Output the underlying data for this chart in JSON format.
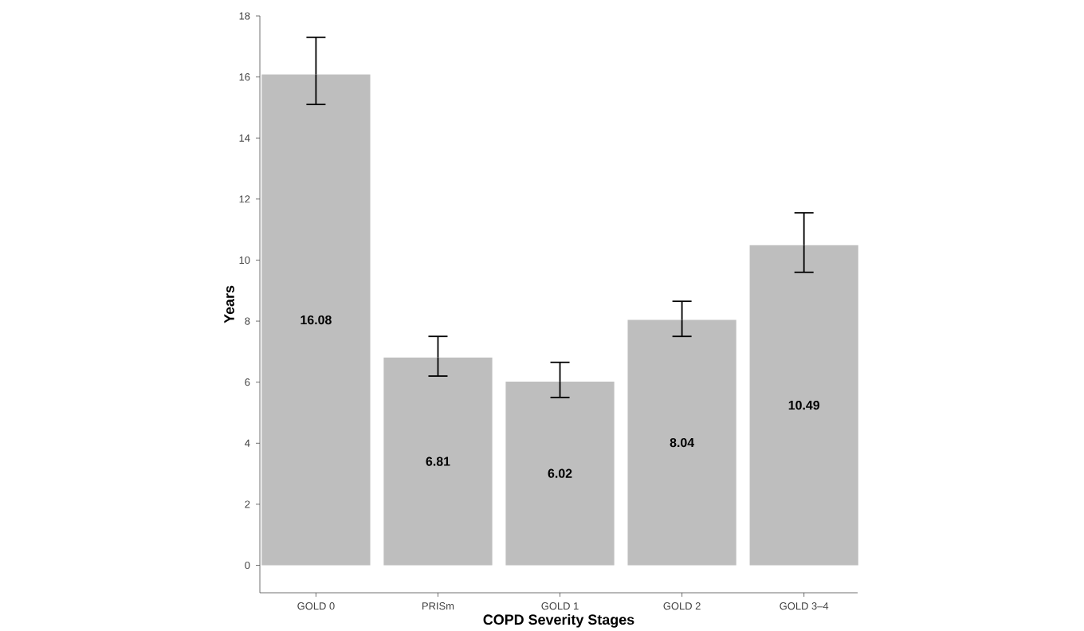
{
  "chart_data": {
    "type": "bar",
    "xlabel": "COPD Severity Stages",
    "ylabel": "Years",
    "categories": [
      "GOLD 0",
      "PRISm",
      "GOLD 1",
      "GOLD 2",
      "GOLD 3–4"
    ],
    "values": [
      16.08,
      6.81,
      6.02,
      8.04,
      10.49
    ],
    "errors": [
      [
        15.1,
        17.3
      ],
      [
        6.2,
        7.5
      ],
      [
        5.5,
        6.65
      ],
      [
        7.5,
        8.65
      ],
      [
        9.6,
        11.55
      ]
    ],
    "color": "#bebebe",
    "ylim": [
      -0.9,
      18
    ],
    "yticks": [
      0,
      2,
      4,
      6,
      8,
      10,
      12,
      14,
      16,
      18
    ],
    "data_labels": true
  }
}
